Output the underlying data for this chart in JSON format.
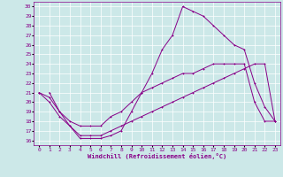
{
  "xlabel": "Windchill (Refroidissement éolien,°C)",
  "bg_color": "#cce8e8",
  "line_color": "#880088",
  "grid_color": "#ffffff",
  "xlim": [
    -0.5,
    23.5
  ],
  "ylim": [
    15.5,
    30.5
  ],
  "yticks": [
    16,
    17,
    18,
    19,
    20,
    21,
    22,
    23,
    24,
    25,
    26,
    27,
    28,
    29,
    30
  ],
  "xticks": [
    0,
    1,
    2,
    3,
    4,
    5,
    6,
    7,
    8,
    9,
    10,
    11,
    12,
    13,
    14,
    15,
    16,
    17,
    18,
    19,
    20,
    21,
    22,
    23
  ],
  "line1_x": [
    1,
    2,
    3,
    4,
    5,
    6,
    7,
    8,
    9,
    10,
    11,
    12,
    13,
    14,
    15,
    16,
    17,
    18,
    19,
    20,
    21,
    22,
    23
  ],
  "line1_y": [
    21,
    19,
    17.5,
    16.2,
    16.2,
    16.2,
    16.5,
    17,
    19,
    21,
    23,
    25.5,
    27,
    30,
    29.5,
    29,
    28,
    27,
    26,
    25.5,
    22,
    19.5,
    18
  ],
  "line2_x": [
    0,
    1,
    2,
    3,
    4,
    5,
    6,
    7,
    8,
    9,
    10,
    11,
    12,
    13,
    14,
    15,
    16,
    17,
    18,
    19,
    20,
    21,
    22,
    23
  ],
  "line2_y": [
    21,
    20.5,
    19,
    18,
    17.5,
    17.5,
    17.5,
    18.5,
    19,
    20,
    21,
    21.5,
    22,
    22.5,
    23,
    23,
    23.5,
    24,
    24,
    24,
    24,
    20,
    18,
    18
  ],
  "line3_x": [
    0,
    1,
    2,
    3,
    4,
    5,
    6,
    7,
    8,
    9,
    10,
    11,
    12,
    13,
    14,
    15,
    16,
    17,
    18,
    19,
    20,
    21,
    22,
    23
  ],
  "line3_y": [
    21,
    20,
    18.5,
    17.5,
    16.5,
    16.5,
    16.5,
    17,
    17.5,
    18,
    18.5,
    19,
    19.5,
    20,
    20.5,
    21,
    21.5,
    22,
    22.5,
    23,
    23.5,
    24,
    24,
    18
  ]
}
